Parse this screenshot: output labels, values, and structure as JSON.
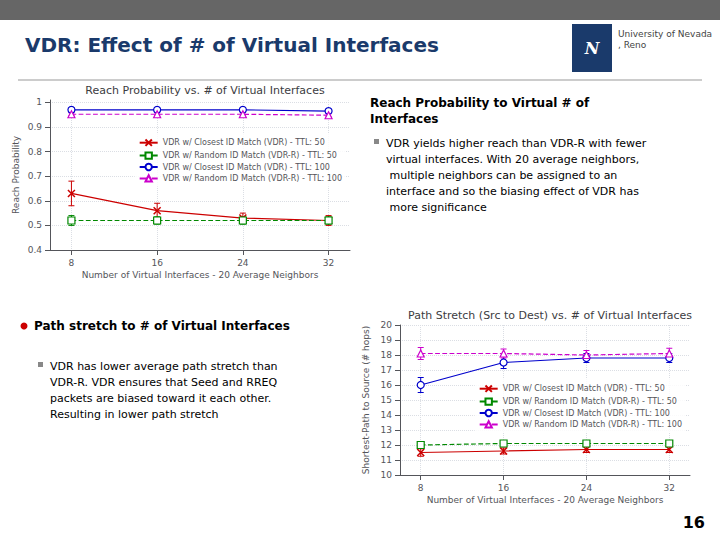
{
  "title": "VDR: Effect of # of Virtual Interfaces",
  "annotations": [
    "N",
    "University of Nevada, Reno",
    "16"
  ],
  "chart_data": [
    {
      "type": "line",
      "title": "Reach Probability vs. # of Virtual Interfaces",
      "xlabel": "Number of Virtual Interfaces - 20 Average Neighbors",
      "ylabel": "Reach Probability",
      "x": [
        8,
        16,
        24,
        32
      ],
      "xlim": [
        6,
        34
      ],
      "xticks": [
        8,
        16,
        24,
        32
      ],
      "ylim": [
        0.4,
        1.01
      ],
      "yticks": [
        0.4,
        0.5,
        0.6,
        0.7,
        0.8,
        0.9,
        1
      ],
      "grid": true,
      "legend": "upper right",
      "series": [
        {
          "name": "VDR w/ Closest ID Match (VDR) - TTL: 50",
          "color": "#cc0000",
          "marker": "x",
          "line_style": "solid",
          "values": [
            0.63,
            0.56,
            0.53,
            0.52
          ],
          "errors": [
            0.05,
            0.03,
            0.02,
            0.02
          ]
        },
        {
          "name": "VDR w/ Random ID Match (VDR-R) - TTL: 50",
          "color": "#008800",
          "marker": "square",
          "line_style": "dashed",
          "values": [
            0.52,
            0.52,
            0.52,
            0.52
          ],
          "errors": [
            0.02,
            0.015,
            0.015,
            0.015
          ]
        },
        {
          "name": "VDR w/ Closest ID Match (VDR) - TTL: 100",
          "color": "#0000cc",
          "marker": "circle",
          "line_style": "solid",
          "values": [
            0.97,
            0.97,
            0.97,
            0.965
          ],
          "errors": [
            0.008,
            0.008,
            0.007,
            0.008
          ]
        },
        {
          "name": "VDR w/ Random ID Match (VDR-R) - TTL: 100",
          "color": "#cc00cc",
          "marker": "triangle",
          "line_style": "dashed",
          "values": [
            0.952,
            0.952,
            0.952,
            0.948
          ],
          "errors": [
            0.006,
            0.006,
            0.006,
            0.006
          ]
        }
      ],
      "annotations": [
        "Reach Probability to Virtual # of Interfaces",
        "VDR yields higher reach than VDR-R with fewer virtual interfaces. With 20 average neighbors, multiple neighbors can be assigned to an interface and so the biasing effect of VDR has more significance"
      ]
    },
    {
      "type": "line",
      "title": "Path Stretch (Src to Dest) vs. # of Virtual Interfaces",
      "xlabel": "Number of Virtual Interfaces - 20 Average Neighbors",
      "ylabel": "Shortest-Path to Source (# hops)",
      "x": [
        8,
        16,
        24,
        32
      ],
      "xlim": [
        6,
        34
      ],
      "xticks": [
        8,
        16,
        24,
        32
      ],
      "ylim": [
        10,
        20
      ],
      "yticks": [
        10,
        11,
        12,
        13,
        14,
        15,
        16,
        17,
        18,
        19,
        20
      ],
      "grid": true,
      "legend": "center right",
      "series": [
        {
          "name": "VDR w/ Closest ID Match (VDR) - TTL: 50",
          "color": "#cc0000",
          "marker": "x",
          "line_style": "solid",
          "values": [
            11.5,
            11.6,
            11.7,
            11.7
          ],
          "errors": [
            0.25,
            0.2,
            0.2,
            0.2
          ]
        },
        {
          "name": "VDR w/ Random ID Match (VDR-R) - TTL: 50",
          "color": "#008800",
          "marker": "square",
          "line_style": "dashed",
          "values": [
            12.0,
            12.1,
            12.1,
            12.1
          ],
          "errors": [
            0.2,
            0.15,
            0.15,
            0.15
          ]
        },
        {
          "name": "VDR w/ Closest ID Match (VDR) - TTL: 100",
          "color": "#0000cc",
          "marker": "circle",
          "line_style": "solid",
          "values": [
            16.0,
            17.5,
            17.8,
            17.8
          ],
          "errors": [
            0.5,
            0.4,
            0.3,
            0.3
          ]
        },
        {
          "name": "VDR w/ Random ID Match (VDR-R) - TTL: 100",
          "color": "#cc00cc",
          "marker": "triangle",
          "line_style": "dashed",
          "values": [
            18.1,
            18.1,
            18.0,
            18.1
          ],
          "errors": [
            0.4,
            0.3,
            0.3,
            0.35
          ]
        }
      ],
      "annotations": [
        "Path stretch to # of Virtual Interfaces",
        "VDR has lower average path stretch than VDR-R. VDR ensures that Seed and RREQ packets are biased toward it each other. Resulting in lower path stretch"
      ]
    }
  ]
}
